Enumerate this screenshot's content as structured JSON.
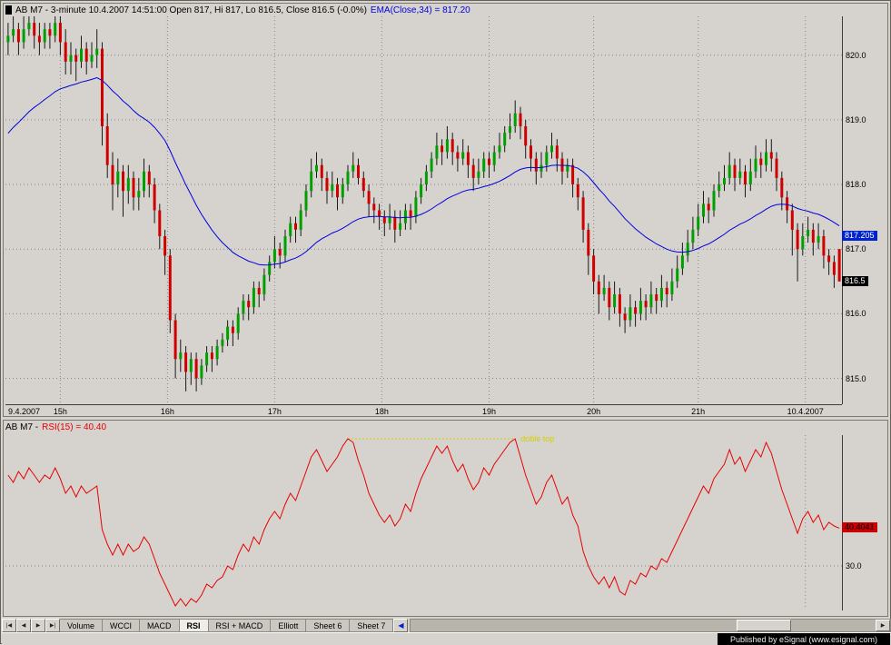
{
  "statusbar": {
    "text": "Published by eSignal (www.esignal.com)"
  },
  "tabs": {
    "nav": [
      "|◀",
      "◀",
      "▶",
      "▶|"
    ],
    "items": [
      {
        "label": "Volume",
        "active": false
      },
      {
        "label": "WCCI",
        "active": false
      },
      {
        "label": "MACD",
        "active": false
      },
      {
        "label": "RSI",
        "active": true
      },
      {
        "label": "RSI + MACD",
        "active": false
      },
      {
        "label": "Elliott",
        "active": false
      },
      {
        "label": "Sheet 6",
        "active": false
      },
      {
        "label": "Sheet 7",
        "active": false
      }
    ],
    "scroll_left_glyph": "◀",
    "scroll_right_glyph": "▶"
  },
  "colors": {
    "background": "#d6d3ce",
    "up": "#00a000",
    "down": "#d00000",
    "wick": "#1a1a1a",
    "ema": "#0000dd",
    "rsi": "#e60000",
    "grid": "#878787",
    "ema_flag_bg": "#0022cc",
    "last_flag_bg": "#000000",
    "rsi_flag_bg": "#cc0000",
    "annotation": "#d2cf00"
  },
  "chart_data": [
    {
      "type": "candlestick",
      "title": "AB M7 - 3-minute 10.4.2007 14:51:00 Open 817, Hi 817, Lo 816.5, Close 816.5 (-0.0%)",
      "symbol": "AB M7",
      "interval": "3-minute",
      "ema": {
        "label": "EMA(Close,34) = 817.20",
        "period": 34,
        "value": 817.205,
        "flag_text": "817.205",
        "seed": 818.7,
        "color": "#0000dd"
      },
      "last_close": 816.5,
      "flag_last_text": "816.5",
      "ylim": [
        814.6,
        820.6
      ],
      "y_ticks": [
        820,
        819,
        818,
        817,
        816,
        815
      ],
      "x_ticks": [
        {
          "label": "9.4.2007",
          "i": 0
        },
        {
          "label": "15h",
          "i": 10
        },
        {
          "label": "16h",
          "i": 30.5
        },
        {
          "label": "17h",
          "i": 51
        },
        {
          "label": "18h",
          "i": 71.5
        },
        {
          "label": "19h",
          "i": 92
        },
        {
          "label": "20h",
          "i": 112
        },
        {
          "label": "21h",
          "i": 132
        },
        {
          "label": "10.4.2007",
          "i": 152.5
        }
      ],
      "up_color": "#00a000",
      "down_color": "#d00000",
      "wick_color": "#1a1a1a",
      "grid_color": "#878787",
      "ohlc": [
        [
          820.2,
          820.5,
          820.0,
          820.3
        ],
        [
          820.3,
          820.6,
          820.2,
          820.4
        ],
        [
          820.4,
          820.5,
          820.0,
          820.2
        ],
        [
          820.2,
          820.6,
          820.1,
          820.4
        ],
        [
          820.4,
          820.6,
          820.3,
          820.5
        ],
        [
          820.5,
          820.6,
          820.1,
          820.3
        ],
        [
          820.3,
          820.5,
          820.0,
          820.2
        ],
        [
          820.2,
          820.5,
          820.1,
          820.4
        ],
        [
          820.4,
          820.5,
          820.1,
          820.3
        ],
        [
          820.3,
          820.6,
          820.2,
          820.5
        ],
        [
          820.5,
          820.6,
          820.0,
          820.2
        ],
        [
          820.2,
          820.4,
          819.7,
          819.9
        ],
        [
          819.9,
          820.2,
          819.7,
          820.0
        ],
        [
          820.0,
          820.1,
          819.6,
          819.9
        ],
        [
          819.9,
          820.3,
          819.8,
          820.1
        ],
        [
          820.1,
          820.2,
          819.7,
          819.9
        ],
        [
          819.9,
          820.2,
          819.8,
          820.0
        ],
        [
          820.0,
          820.4,
          819.8,
          820.1
        ],
        [
          820.1,
          820.2,
          818.6,
          818.9
        ],
        [
          818.9,
          819.1,
          818.1,
          818.3
        ],
        [
          818.3,
          818.5,
          817.6,
          818.0
        ],
        [
          818.0,
          818.4,
          817.8,
          818.2
        ],
        [
          818.2,
          818.3,
          817.5,
          817.9
        ],
        [
          817.9,
          818.3,
          817.7,
          818.1
        ],
        [
          818.1,
          818.2,
          817.6,
          817.8
        ],
        [
          817.8,
          818.1,
          817.6,
          817.9
        ],
        [
          817.9,
          818.4,
          817.8,
          818.2
        ],
        [
          818.2,
          818.3,
          817.8,
          818.0
        ],
        [
          818.0,
          818.1,
          817.4,
          817.6
        ],
        [
          817.6,
          817.7,
          817.0,
          817.2
        ],
        [
          817.2,
          817.3,
          816.6,
          816.9
        ],
        [
          816.9,
          817.0,
          815.7,
          815.9
        ],
        [
          815.9,
          816.0,
          815.0,
          815.3
        ],
        [
          815.3,
          815.6,
          815.1,
          815.4
        ],
        [
          815.4,
          815.5,
          814.8,
          815.1
        ],
        [
          815.1,
          815.4,
          814.9,
          815.3
        ],
        [
          815.3,
          815.4,
          814.8,
          815.0
        ],
        [
          815.0,
          815.3,
          814.9,
          815.2
        ],
        [
          815.2,
          815.5,
          815.1,
          815.4
        ],
        [
          815.4,
          815.5,
          815.1,
          815.3
        ],
        [
          815.3,
          815.6,
          815.2,
          815.5
        ],
        [
          815.5,
          815.7,
          815.4,
          815.6
        ],
        [
          815.6,
          815.9,
          815.5,
          815.8
        ],
        [
          815.8,
          815.9,
          815.5,
          815.7
        ],
        [
          815.7,
          816.1,
          815.6,
          816.0
        ],
        [
          816.0,
          816.3,
          815.9,
          816.2
        ],
        [
          816.2,
          816.3,
          815.9,
          816.1
        ],
        [
          816.1,
          816.5,
          816.0,
          816.4
        ],
        [
          816.4,
          816.5,
          816.1,
          816.3
        ],
        [
          816.3,
          816.7,
          816.2,
          816.6
        ],
        [
          816.6,
          816.9,
          816.5,
          816.8
        ],
        [
          816.8,
          817.2,
          816.7,
          817.0
        ],
        [
          817.0,
          817.1,
          816.7,
          816.9
        ],
        [
          816.9,
          817.3,
          816.8,
          817.2
        ],
        [
          817.2,
          817.5,
          817.1,
          817.4
        ],
        [
          817.4,
          817.5,
          817.1,
          817.3
        ],
        [
          817.3,
          817.7,
          817.2,
          817.6
        ],
        [
          817.6,
          818.0,
          817.5,
          817.9
        ],
        [
          817.9,
          818.4,
          817.8,
          818.2
        ],
        [
          818.2,
          818.5,
          818.1,
          818.3
        ],
        [
          818.3,
          818.4,
          817.9,
          818.1
        ],
        [
          818.1,
          818.2,
          817.7,
          817.9
        ],
        [
          817.9,
          818.2,
          817.8,
          818.0
        ],
        [
          818.0,
          818.1,
          817.6,
          817.8
        ],
        [
          817.8,
          818.1,
          817.7,
          818.0
        ],
        [
          818.0,
          818.3,
          817.9,
          818.2
        ],
        [
          818.2,
          818.5,
          818.1,
          818.3
        ],
        [
          818.3,
          818.4,
          818.0,
          818.1
        ],
        [
          818.1,
          818.2,
          817.8,
          817.9
        ],
        [
          817.9,
          818.0,
          817.5,
          817.7
        ],
        [
          817.7,
          817.8,
          817.4,
          817.6
        ],
        [
          817.6,
          817.7,
          817.3,
          817.5
        ],
        [
          817.5,
          817.6,
          817.2,
          817.4
        ],
        [
          817.4,
          817.7,
          817.3,
          817.5
        ],
        [
          817.5,
          817.6,
          817.1,
          817.3
        ],
        [
          817.3,
          817.6,
          817.2,
          817.4
        ],
        [
          817.4,
          817.7,
          817.3,
          817.6
        ],
        [
          817.6,
          817.7,
          817.3,
          817.5
        ],
        [
          817.5,
          817.9,
          817.4,
          817.8
        ],
        [
          817.8,
          818.1,
          817.7,
          818.0
        ],
        [
          818.0,
          818.3,
          817.9,
          818.2
        ],
        [
          818.2,
          818.5,
          818.1,
          818.4
        ],
        [
          818.4,
          818.8,
          818.3,
          818.6
        ],
        [
          818.6,
          818.7,
          818.3,
          818.5
        ],
        [
          818.5,
          818.9,
          818.4,
          818.7
        ],
        [
          818.7,
          818.8,
          818.3,
          818.5
        ],
        [
          818.5,
          818.6,
          818.2,
          818.4
        ],
        [
          818.4,
          818.7,
          818.3,
          818.5
        ],
        [
          818.5,
          818.6,
          818.1,
          818.3
        ],
        [
          818.3,
          818.4,
          817.9,
          818.1
        ],
        [
          818.1,
          818.4,
          818.0,
          818.2
        ],
        [
          818.2,
          818.5,
          818.1,
          818.4
        ],
        [
          818.4,
          818.5,
          818.1,
          818.3
        ],
        [
          818.3,
          818.6,
          818.2,
          818.5
        ],
        [
          818.5,
          818.8,
          818.4,
          818.6
        ],
        [
          818.6,
          818.9,
          818.5,
          818.8
        ],
        [
          818.8,
          819.1,
          818.7,
          818.9
        ],
        [
          818.9,
          819.3,
          818.8,
          819.1
        ],
        [
          819.1,
          819.2,
          818.7,
          818.9
        ],
        [
          818.9,
          819.0,
          818.4,
          818.6
        ],
        [
          818.6,
          818.7,
          818.2,
          818.4
        ],
        [
          818.4,
          818.5,
          818.0,
          818.2
        ],
        [
          818.2,
          818.5,
          818.1,
          818.3
        ],
        [
          818.3,
          818.6,
          818.2,
          818.5
        ],
        [
          818.5,
          818.8,
          818.4,
          818.6
        ],
        [
          818.6,
          818.7,
          818.2,
          818.4
        ],
        [
          818.4,
          818.5,
          818.0,
          818.2
        ],
        [
          818.2,
          818.4,
          818.1,
          818.3
        ],
        [
          818.3,
          818.4,
          817.8,
          818.0
        ],
        [
          818.0,
          818.1,
          817.6,
          817.8
        ],
        [
          817.8,
          817.9,
          817.1,
          817.3
        ],
        [
          817.3,
          817.4,
          816.6,
          816.9
        ],
        [
          816.9,
          817.0,
          816.3,
          816.5
        ],
        [
          816.5,
          816.6,
          816.0,
          816.3
        ],
        [
          816.3,
          816.6,
          816.2,
          816.4
        ],
        [
          816.4,
          816.5,
          815.9,
          816.1
        ],
        [
          816.1,
          816.5,
          816.0,
          816.3
        ],
        [
          816.3,
          816.4,
          815.8,
          816.0
        ],
        [
          816.0,
          816.1,
          815.7,
          815.9
        ],
        [
          815.9,
          816.3,
          815.8,
          816.1
        ],
        [
          816.1,
          816.2,
          815.8,
          816.0
        ],
        [
          816.0,
          816.4,
          815.9,
          816.2
        ],
        [
          816.2,
          816.3,
          815.9,
          816.1
        ],
        [
          816.1,
          816.5,
          816.0,
          816.3
        ],
        [
          816.3,
          816.4,
          816.0,
          816.2
        ],
        [
          816.2,
          816.6,
          816.1,
          816.4
        ],
        [
          816.4,
          816.5,
          816.1,
          816.3
        ],
        [
          816.3,
          816.7,
          816.2,
          816.5
        ],
        [
          816.5,
          816.9,
          816.4,
          816.7
        ],
        [
          816.7,
          817.1,
          816.6,
          816.9
        ],
        [
          816.9,
          817.3,
          816.8,
          817.1
        ],
        [
          817.1,
          817.5,
          817.0,
          817.3
        ],
        [
          817.3,
          817.7,
          817.2,
          817.5
        ],
        [
          817.5,
          817.9,
          817.4,
          817.7
        ],
        [
          817.7,
          817.8,
          817.4,
          817.6
        ],
        [
          817.6,
          818.0,
          817.5,
          817.9
        ],
        [
          817.9,
          818.2,
          817.8,
          818.0
        ],
        [
          818.0,
          818.3,
          817.9,
          818.1
        ],
        [
          818.1,
          818.5,
          818.0,
          818.3
        ],
        [
          818.3,
          818.4,
          817.9,
          818.1
        ],
        [
          818.1,
          818.4,
          818.0,
          818.2
        ],
        [
          818.2,
          818.3,
          817.8,
          818.0
        ],
        [
          818.0,
          818.4,
          817.9,
          818.2
        ],
        [
          818.2,
          818.6,
          818.1,
          818.4
        ],
        [
          818.4,
          818.5,
          818.1,
          818.3
        ],
        [
          818.3,
          818.7,
          818.2,
          818.5
        ],
        [
          818.5,
          818.7,
          818.2,
          818.4
        ],
        [
          818.4,
          818.5,
          817.9,
          818.1
        ],
        [
          818.1,
          818.2,
          817.6,
          817.8
        ],
        [
          817.8,
          817.9,
          817.4,
          817.6
        ],
        [
          817.6,
          817.7,
          816.9,
          817.3
        ],
        [
          817.3,
          817.4,
          816.5,
          817.0
        ],
        [
          817.0,
          817.4,
          816.9,
          817.2
        ],
        [
          817.2,
          817.5,
          817.1,
          817.3
        ],
        [
          817.3,
          817.4,
          816.9,
          817.1
        ],
        [
          817.1,
          817.4,
          817.0,
          817.2
        ],
        [
          817.2,
          817.3,
          816.7,
          816.9
        ],
        [
          816.9,
          817.0,
          816.6,
          816.8
        ],
        [
          816.8,
          816.9,
          816.4,
          816.6
        ],
        [
          817.0,
          817.0,
          816.5,
          816.5
        ]
      ]
    },
    {
      "type": "line",
      "title_prefix": "AB M7 - ",
      "label": "RSI(15) = 40.40",
      "name": "RSI(15)",
      "color": "#e60000",
      "grid_color": "#878787",
      "ylim": [
        18,
        66
      ],
      "y_ticks": [
        30
      ],
      "last_value": 40.4041,
      "flag_text": "40.4041",
      "date_line_i": 152.5,
      "annotation": {
        "label": "doble top",
        "value": 65,
        "from_i": 65,
        "to_i": 97,
        "color": "#d2cf00"
      },
      "values": [
        55,
        53,
        56,
        54,
        57,
        55,
        53,
        55,
        54,
        57,
        54,
        50,
        52,
        49,
        52,
        50,
        51,
        52,
        40,
        36,
        33,
        36,
        33,
        36,
        34,
        35,
        38,
        36,
        32,
        28,
        25,
        22,
        19,
        21,
        19,
        21,
        20,
        22,
        25,
        24,
        26,
        27,
        30,
        29,
        33,
        36,
        34,
        38,
        36,
        40,
        43,
        45,
        43,
        47,
        50,
        48,
        52,
        56,
        60,
        62,
        59,
        56,
        58,
        60,
        63,
        65,
        64,
        59,
        55,
        50,
        47,
        44,
        42,
        44,
        41,
        43,
        47,
        45,
        50,
        54,
        57,
        60,
        63,
        61,
        63,
        59,
        56,
        58,
        54,
        51,
        53,
        57,
        55,
        58,
        60,
        62,
        64,
        65,
        60,
        55,
        51,
        47,
        49,
        53,
        55,
        51,
        47,
        49,
        44,
        41,
        34,
        30,
        27,
        25,
        27,
        24,
        27,
        23,
        22,
        26,
        25,
        28,
        27,
        30,
        29,
        32,
        31,
        34,
        37,
        40,
        43,
        46,
        49,
        52,
        50,
        54,
        56,
        58,
        62,
        58,
        60,
        56,
        59,
        62,
        60,
        64,
        61,
        56,
        51,
        47,
        43,
        39,
        43,
        45,
        42,
        44,
        40,
        42,
        41,
        40.4
      ]
    }
  ]
}
